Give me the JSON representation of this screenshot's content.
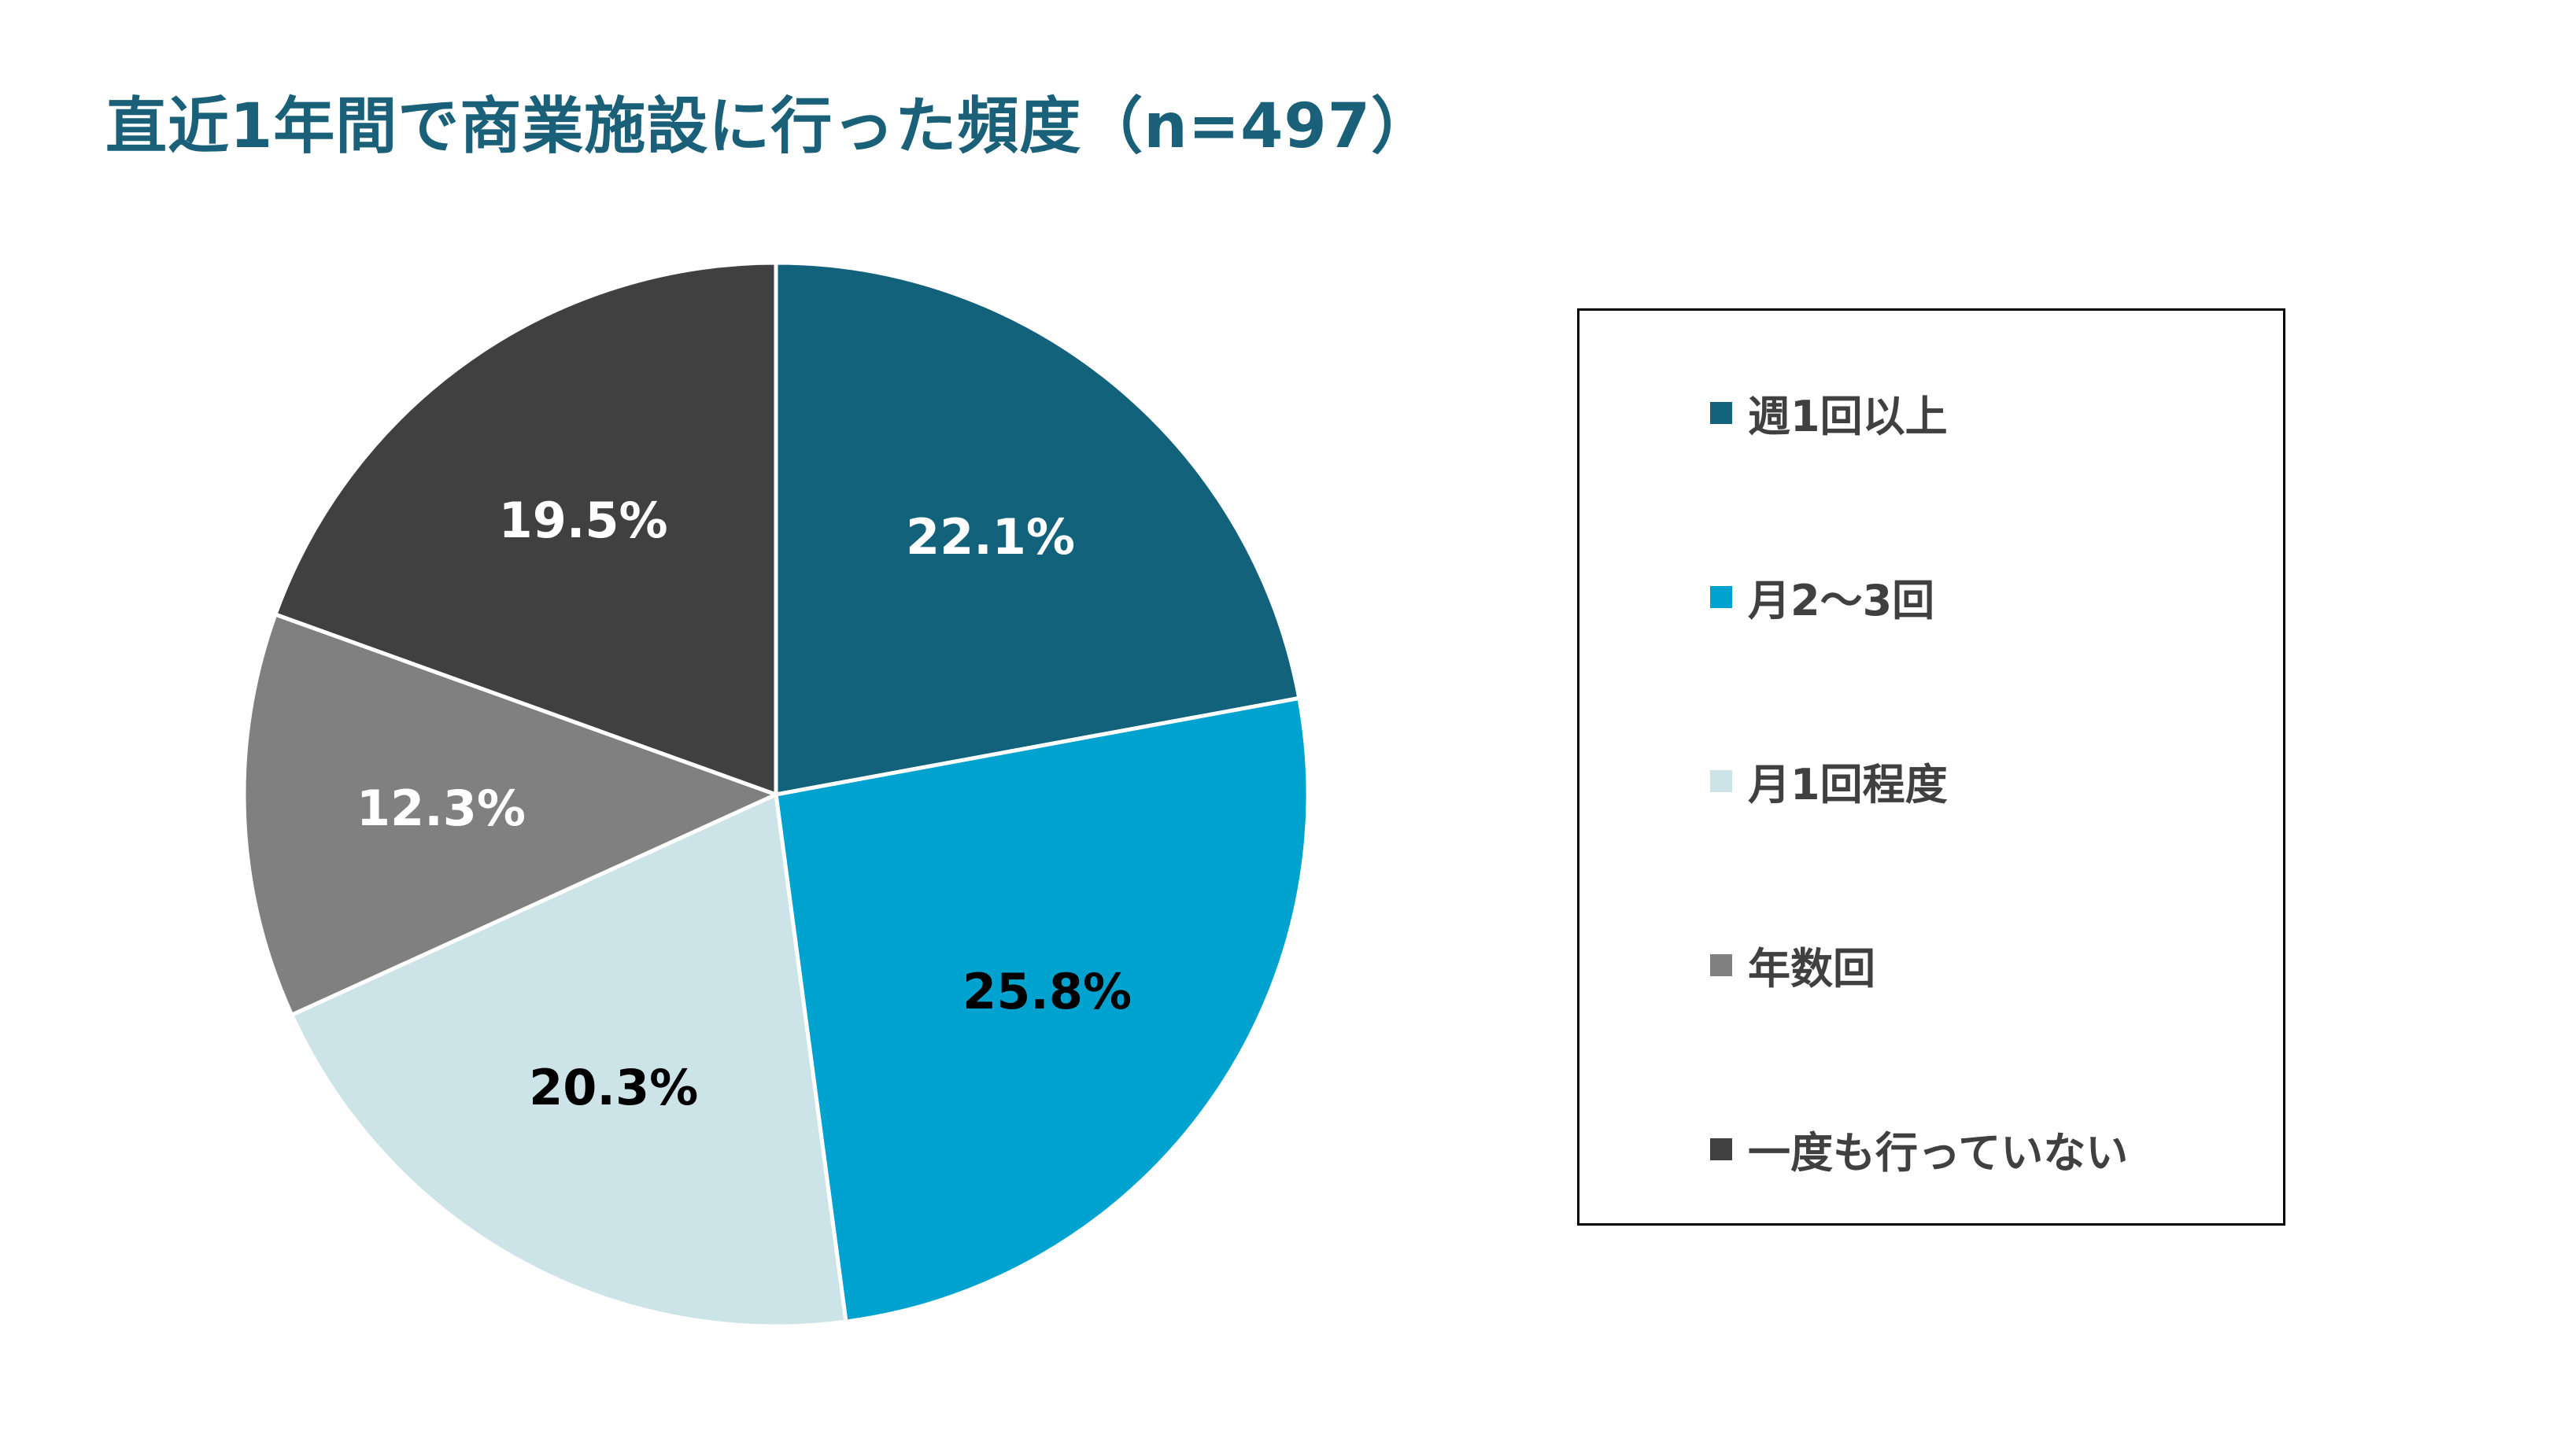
{
  "chart_data": {
    "type": "pie",
    "title": "直近1年間で商業施設に行った頻度（n=497）",
    "slices": [
      {
        "label": "週1回以上",
        "value": 22.1,
        "display": "22.1%",
        "color": "#13627c",
        "label_color": "#ffffff"
      },
      {
        "label": "月2〜3回",
        "value": 25.8,
        "display": "25.8%",
        "color": "#00a3d0",
        "label_color": "#000000"
      },
      {
        "label": "月1回程度",
        "value": 20.3,
        "display": "20.3%",
        "color": "#cce3e8",
        "label_color": "#000000"
      },
      {
        "label": "年数回",
        "value": 12.3,
        "display": "12.3%",
        "color": "#808080",
        "label_color": "#ffffff"
      },
      {
        "label": "一度も行っていない",
        "value": 19.5,
        "display": "19.5%",
        "color": "#404040",
        "label_color": "#ffffff"
      }
    ],
    "legend_position": "right",
    "start": "top",
    "direction": "clockwise"
  }
}
